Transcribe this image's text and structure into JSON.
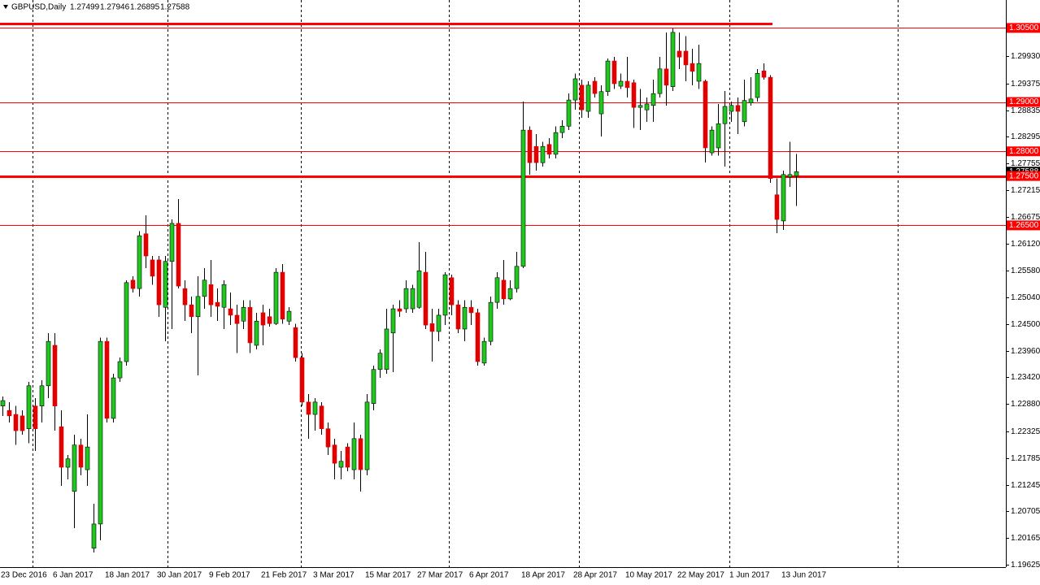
{
  "chart_data": {
    "type": "candlestick",
    "title": "GBPUSD,Daily",
    "categories": [
      "23 Dec 2016",
      null,
      null,
      null,
      null,
      null,
      null,
      null,
      "6 Jan 2017",
      null,
      null,
      null,
      null,
      null,
      null,
      null,
      "18 Jan 2017",
      null,
      null,
      null,
      null,
      null,
      null,
      null,
      "30 Jan 2017",
      null,
      null,
      null,
      null,
      null,
      null,
      null,
      "9 Feb 2017",
      null,
      null,
      null,
      null,
      null,
      null,
      null,
      "21 Feb 2017",
      null,
      null,
      null,
      null,
      null,
      null,
      null,
      "3 Mar 2017",
      null,
      null,
      null,
      null,
      null,
      null,
      null,
      "15 Mar 2017",
      null,
      null,
      null,
      null,
      null,
      null,
      null,
      "27 Mar 2017",
      null,
      null,
      null,
      null,
      null,
      null,
      null,
      "6 Apr 2017",
      null,
      null,
      null,
      null,
      null,
      null,
      null,
      "18 Apr 2017",
      null,
      null,
      null,
      null,
      null,
      null,
      null,
      "28 Apr 2017",
      null,
      null,
      null,
      null,
      null,
      null,
      null,
      "10 May 2017",
      null,
      null,
      null,
      null,
      null,
      null,
      null,
      "22 May 2017",
      null,
      null,
      null,
      null,
      null,
      null,
      null,
      "1 Jun 2017",
      null,
      null,
      null,
      null,
      null,
      null,
      null,
      "13 Jun 2017",
      null,
      null
    ],
    "open": [
      1.2284,
      1.2275,
      1.2267,
      1.2264,
      1.2238,
      1.2284,
      1.2284,
      1.2325,
      1.2407,
      1.2242,
      1.216,
      1.2111,
      1.2205,
      1.2155,
      1.1996,
      1.2045,
      1.2415,
      1.2259,
      1.2341,
      1.2374,
      1.2539,
      1.2522,
      1.2633,
      1.258,
      1.258,
      1.2484,
      1.2577,
      1.2654,
      1.2522,
      1.2489,
      1.2465,
      1.2506,
      1.253,
      1.2494,
      1.2484,
      1.2481,
      1.2468,
      1.2456,
      1.2484,
      1.2407,
      1.2473,
      1.2465,
      1.2451,
      1.2555,
      1.2456,
      1.2443,
      1.2382,
      1.2292,
      1.2267,
      1.2284,
      1.2238,
      1.2205,
      1.216,
      1.2201,
      1.2155,
      1.2218,
      1.2155,
      1.2289,
      1.2358,
      1.2358,
      1.2432,
      1.2481,
      1.2481,
      1.2481,
      1.2484,
      1.2555,
      1.2451,
      1.2435,
      1.2468,
      1.2544,
      1.2489,
      1.244,
      1.2484,
      1.2473,
      1.2371,
      1.2415,
      1.2494,
      1.2539,
      1.2501,
      1.2522,
      1.2567,
      1.2843,
      1.281,
      1.2777,
      1.2814,
      1.2794,
      1.2838,
      1.2851,
      1.2904,
      1.2934,
      1.2881,
      1.2942,
      1.2876,
      1.2921,
      1.2983,
      1.2932,
      1.2942,
      1.2939,
      1.2889,
      1.2884,
      1.2893,
      1.2917,
      1.2967,
      1.2931,
      1.3003,
      1.3003,
      1.2978,
      1.2942,
      1.2942,
      1.2797,
      1.2807,
      1.2856,
      1.2881,
      1.2893,
      1.286,
      1.2898,
      1.2909,
      1.2963,
      1.295,
      1.2712,
      1.2659,
      1.2748,
      1.27499
    ],
    "high": [
      1.2303,
      1.2292,
      1.2284,
      1.2275,
      1.2333,
      1.23,
      1.2336,
      1.2432,
      1.2432,
      1.2275,
      1.2185,
      1.2226,
      1.2218,
      1.2267,
      1.2086,
      1.2423,
      1.2423,
      1.2349,
      1.2382,
      1.2539,
      1.2547,
      1.2638,
      1.267,
      1.2588,
      1.2588,
      1.2588,
      1.2662,
      1.2703,
      1.2539,
      1.2506,
      1.2547,
      1.2563,
      1.258,
      1.2522,
      1.2539,
      1.2514,
      1.2489,
      1.2498,
      1.2498,
      1.2473,
      1.2489,
      1.2481,
      1.2563,
      1.2572,
      1.2484,
      1.2451,
      1.2391,
      1.2308,
      1.23,
      1.2292,
      1.2251,
      1.2218,
      1.2193,
      1.2209,
      1.2251,
      1.2226,
      1.2308,
      1.2366,
      1.2399,
      1.2481,
      1.2489,
      1.2498,
      1.2539,
      1.253,
      1.2616,
      1.2596,
      1.2481,
      1.2481,
      1.2555,
      1.255,
      1.2498,
      1.2498,
      1.2498,
      1.2481,
      1.2423,
      1.2506,
      1.2555,
      1.258,
      1.2539,
      1.2596,
      1.2901,
      1.2851,
      1.2835,
      1.2819,
      1.2827,
      1.2851,
      1.2863,
      1.2917,
      1.2958,
      1.2945,
      1.2942,
      1.295,
      1.2934,
      1.2988,
      1.2991,
      1.2958,
      1.2991,
      1.2945,
      1.2926,
      1.2909,
      1.2945,
      1.2991,
      1.3041,
      1.3049,
      1.3041,
      1.3033,
      1.3008,
      1.3016,
      1.2945,
      1.2851,
      1.2896,
      1.2922,
      1.2901,
      1.2909,
      1.2945,
      1.295,
      1.2967,
      1.2978,
      1.2954,
      1.2745,
      1.2761,
      1.2819,
      1.27946
    ],
    "low": [
      1.2264,
      1.2251,
      1.2205,
      1.2226,
      1.2209,
      1.2193,
      1.2251,
      1.23,
      1.2234,
      1.2122,
      1.2135,
      1.2037,
      1.2144,
      1.2122,
      1.1987,
      1.2012,
      1.2251,
      1.2251,
      1.2333,
      1.2366,
      1.2514,
      1.2506,
      1.2563,
      1.253,
      1.2465,
      1.2415,
      1.244,
      1.2522,
      1.2456,
      1.2432,
      1.2346,
      1.2481,
      1.2465,
      1.2456,
      1.244,
      1.2448,
      1.2391,
      1.244,
      1.2391,
      1.2399,
      1.2407,
      1.2445,
      1.2448,
      1.2451,
      1.2448,
      1.2374,
      1.2284,
      1.2218,
      1.2234,
      1.2226,
      1.2185,
      1.2135,
      1.2135,
      1.2152,
      1.2135,
      1.2111,
      1.2144,
      1.2275,
      1.2341,
      1.2349,
      1.2353,
      1.2465,
      1.2473,
      1.2473,
      1.2481,
      1.244,
      1.2374,
      1.2415,
      1.2448,
      1.2468,
      1.2432,
      1.2415,
      1.2448,
      1.2366,
      1.2366,
      1.2407,
      1.2481,
      1.2489,
      1.2498,
      1.2514,
      1.2563,
      1.2753,
      1.2761,
      1.2769,
      1.2786,
      1.2786,
      1.2827,
      1.2843,
      1.2884,
      1.2868,
      1.2868,
      1.2909,
      1.283,
      1.2912,
      1.2926,
      1.2926,
      1.2909,
      1.2847,
      1.2843,
      1.286,
      1.286,
      1.2909,
      1.2893,
      1.2922,
      1.2967,
      1.2942,
      1.2934,
      1.2926,
      1.2777,
      1.2791,
      1.2791,
      1.2769,
      1.286,
      1.2835,
      1.2851,
      1.2893,
      1.2901,
      1.2945,
      1.2736,
      1.2634,
      1.2641,
      1.2728,
      1.26895
    ],
    "close": [
      1.2295,
      1.2264,
      1.2234,
      1.2234,
      1.2325,
      1.2238,
      1.2325,
      1.2415,
      1.2284,
      1.216,
      1.2177,
      1.2205,
      1.216,
      1.2201,
      1.2045,
      1.2415,
      1.2259,
      1.2341,
      1.2374,
      1.2534,
      1.2522,
      1.2629,
      1.2588,
      1.2547,
      1.2489,
      1.2577,
      1.2654,
      1.2527,
      1.2489,
      1.2465,
      1.2506,
      1.2539,
      1.2489,
      1.2486,
      1.253,
      1.2468,
      1.2451,
      1.2484,
      1.2412,
      1.2456,
      1.2448,
      1.2451,
      1.2555,
      1.246,
      1.2476,
      1.2382,
      1.2292,
      1.2267,
      1.2292,
      1.2238,
      1.2201,
      1.2168,
      1.2172,
      1.216,
      1.2218,
      1.2155,
      1.2292,
      1.2358,
      1.2391,
      1.244,
      1.2481,
      1.2476,
      1.2522,
      1.2522,
      1.2558,
      1.2448,
      1.2435,
      1.2468,
      1.255,
      1.2489,
      1.244,
      1.2484,
      1.2473,
      1.2374,
      1.2415,
      1.2494,
      1.2544,
      1.2501,
      1.2522,
      1.2567,
      1.2843,
      1.2777,
      1.2777,
      1.281,
      1.2794,
      1.2838,
      1.2851,
      1.2904,
      1.2947,
      1.2884,
      1.2934,
      1.2917,
      1.2921,
      1.2983,
      1.2937,
      1.2942,
      1.2929,
      1.2889,
      1.2893,
      1.2896,
      1.2917,
      1.2967,
      1.2934,
      1.3041,
      1.2991,
      1.2975,
      1.2962,
      1.2978,
      1.2807,
      1.2843,
      1.2856,
      1.2891,
      1.2893,
      1.2881,
      1.2903,
      1.2906,
      1.2958,
      1.295,
      1.2745,
      1.2662,
      1.2753,
      1.2753,
      1.27588
    ],
    "up_color": "#1ec81e",
    "down_color": "#e00000",
    "wick_color": "#000000",
    "ylim": [
      1.19576,
      1.31066
    ],
    "yticks": [
      {
        "value": 1.2993,
        "label": "1.29930"
      },
      1.29375,
      1.28835,
      1.28295,
      1.27755,
      1.27215,
      1.26675,
      {
        "value": 1.2612,
        "label": "1.26120"
      },
      {
        "value": 1.2558,
        "label": "1.25580"
      },
      {
        "value": 1.2504,
        "label": "1.25040"
      },
      {
        "value": 1.245,
        "label": "1.24500"
      },
      {
        "value": 1.2396,
        "label": "1.23960"
      },
      {
        "value": 1.2342,
        "label": "1.23420"
      },
      {
        "value": 1.2288,
        "label": "1.22880"
      },
      1.22325,
      1.21785,
      1.21245,
      1.20705,
      1.20165,
      1.19625
    ],
    "level_color": "#ff0000",
    "levels": [
      {
        "value": 1.3059,
        "thick": true,
        "to": 118
      },
      {
        "value": 1.305,
        "label": "1.30500"
      },
      {
        "value": 1.29,
        "label": "1.29000"
      },
      {
        "value": 1.28,
        "label": "1.28000"
      },
      {
        "value": 1.275,
        "label": "1.27500",
        "thick": true
      },
      {
        "value": 1.265,
        "label": "1.26500"
      }
    ],
    "grid": false
  }
}
